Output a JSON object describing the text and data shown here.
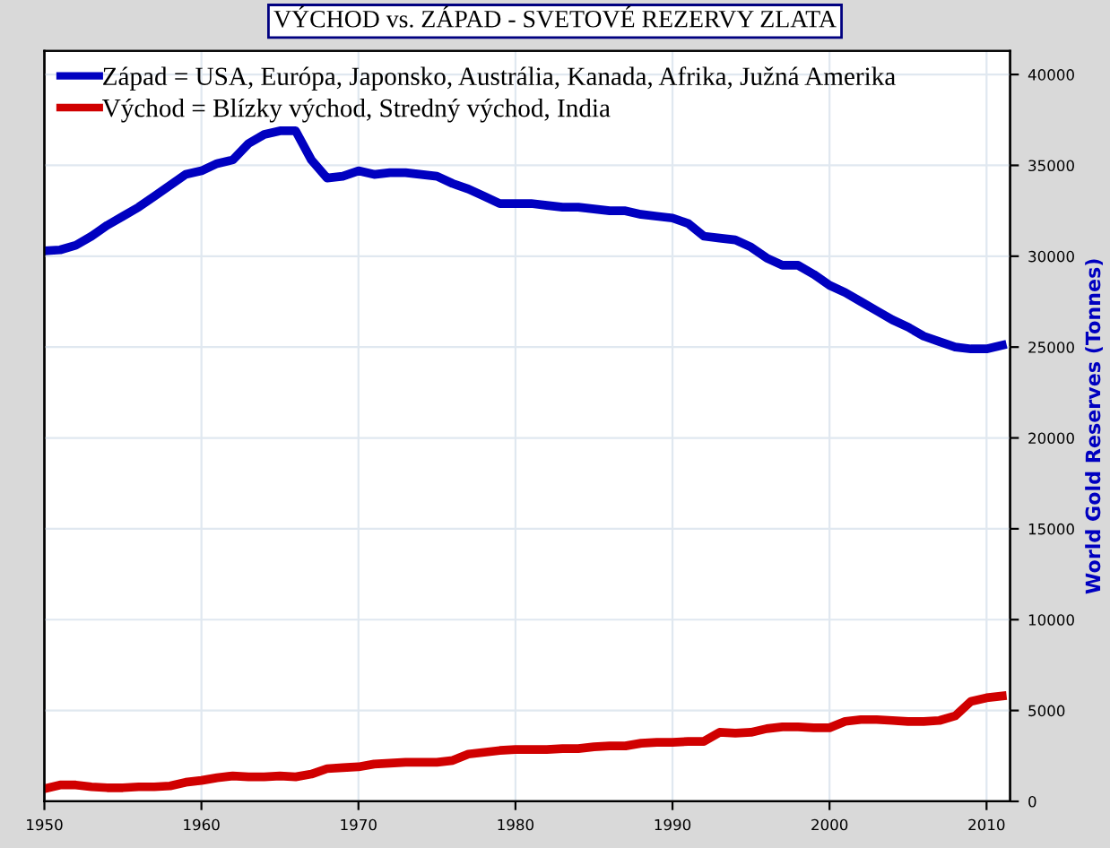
{
  "chart_data": {
    "type": "line",
    "title": "VÝCHOD vs. ZÁPAD - SVETOVÉ REZERVY ZLATA",
    "y2label": "World Gold Reserves (Tonnes)",
    "x": [
      1950,
      1951,
      1952,
      1953,
      1954,
      1955,
      1956,
      1957,
      1958,
      1959,
      1960,
      1961,
      1962,
      1963,
      1964,
      1965,
      1966,
      1967,
      1968,
      1969,
      1970,
      1971,
      1972,
      1973,
      1974,
      1975,
      1976,
      1977,
      1978,
      1979,
      1980,
      1981,
      1982,
      1983,
      1984,
      1985,
      1986,
      1987,
      1988,
      1989,
      1990,
      1991,
      1992,
      1993,
      1994,
      1995,
      1996,
      1997,
      1998,
      1999,
      2000,
      2001,
      2002,
      2003,
      2004,
      2005,
      2006,
      2007,
      2008,
      2009,
      2010,
      2011
    ],
    "series": [
      {
        "name": "Západ = USA, Európa, Japonsko, Austrália, Kanada, Afrika, Južná Amerika",
        "color": "#0000c0",
        "axis": "y2",
        "values": [
          30300,
          30350,
          30600,
          31100,
          31700,
          32200,
          32700,
          33300,
          33900,
          34500,
          34700,
          35100,
          35300,
          36200,
          36700,
          36900,
          36900,
          35300,
          34300,
          34400,
          34700,
          34500,
          34600,
          34600,
          34500,
          34400,
          34000,
          33700,
          33300,
          32900,
          32900,
          32900,
          32800,
          32700,
          32700,
          32600,
          32500,
          32500,
          32300,
          32200,
          32100,
          31800,
          31100,
          31000,
          30900,
          30500,
          29900,
          29500,
          29500,
          29000,
          28400,
          28000,
          27500,
          27000,
          26500,
          26100,
          25600,
          25300,
          25000,
          24900,
          24900,
          25100
        ]
      },
      {
        "name": "Východ = Blízky východ, Stredný východ, India",
        "color": "#d00000",
        "axis": "y2",
        "values": [
          700,
          900,
          900,
          800,
          750,
          750,
          800,
          800,
          850,
          1050,
          1150,
          1300,
          1400,
          1350,
          1350,
          1400,
          1350,
          1500,
          1800,
          1850,
          1900,
          2050,
          2100,
          2150,
          2150,
          2150,
          2250,
          2600,
          2700,
          2800,
          2850,
          2850,
          2850,
          2900,
          2900,
          3000,
          3050,
          3050,
          3200,
          3250,
          3250,
          3300,
          3300,
          3800,
          3750,
          3800,
          4000,
          4100,
          4100,
          4050,
          4050,
          4400,
          4500,
          4500,
          4450,
          4400,
          4400,
          4450,
          4700,
          5500,
          5700,
          5800
        ]
      }
    ],
    "xlim": [
      1950,
      2011.5
    ],
    "xticks": [
      1950,
      1960,
      1970,
      1980,
      1990,
      2000,
      2010
    ],
    "y2lim": [
      0,
      41300
    ],
    "y2ticks": [
      0,
      5000,
      10000,
      15000,
      20000,
      25000,
      30000,
      35000,
      40000
    ],
    "grid": true,
    "legend": "top left",
    "marker": "none",
    "line_style": "solid"
  }
}
